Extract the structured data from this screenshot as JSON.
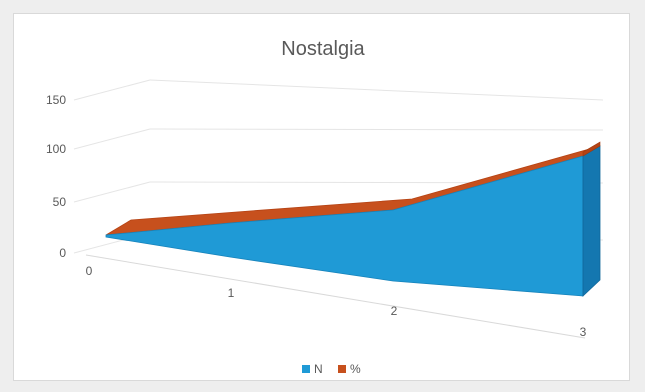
{
  "chart_data": {
    "type": "area",
    "title": "Nostalgia",
    "categories": [
      "0",
      "1",
      "2",
      "3"
    ],
    "x": [
      0,
      1,
      2,
      3
    ],
    "series": [
      {
        "name": "N",
        "values": [
          10,
          24,
          34,
          90
        ],
        "color": "#1f9ad6"
      },
      {
        "name": "%",
        "values": [
          8,
          7,
          6,
          10
        ],
        "color": "#c7501d"
      }
    ],
    "y_ticks": [
      "0",
      "50",
      "100",
      "150"
    ],
    "ylim": [
      0,
      150
    ],
    "xlabel": "",
    "ylabel": "",
    "grid": true,
    "legend": "bottom",
    "style": "3d-area"
  }
}
